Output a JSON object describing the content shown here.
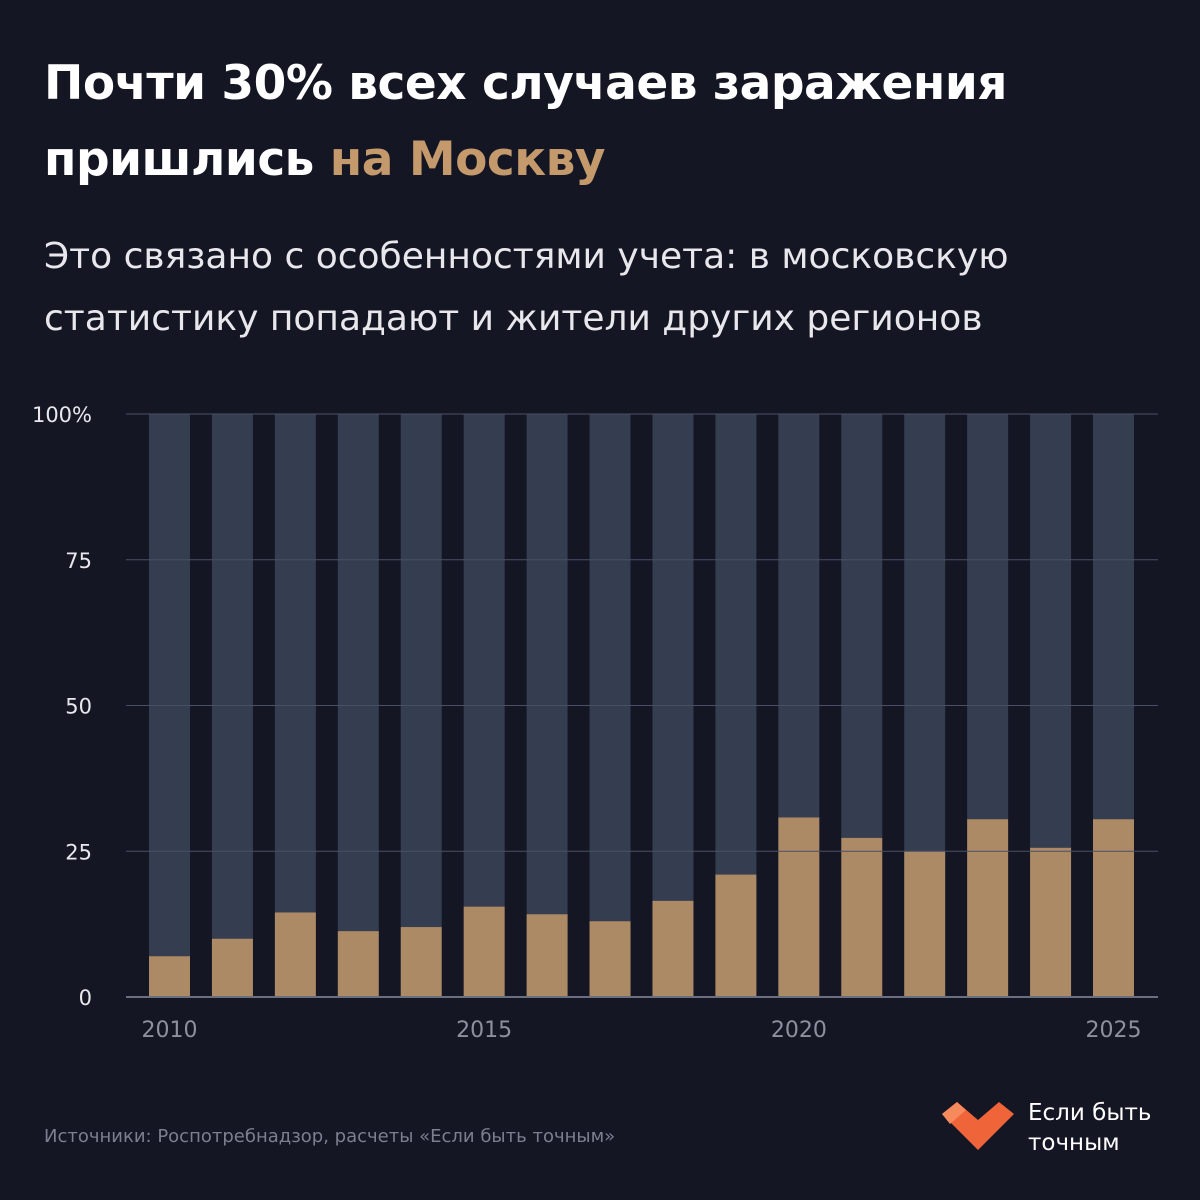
{
  "header": {
    "title_main": "Почти 30% всех случаев заражения пришлись ",
    "title_accent": "на Москву",
    "subtitle": "Это связано с особенностями учета: в московскую статистику попадают и жители других регионов"
  },
  "colors": {
    "background": "#141624",
    "accent": "#c49a6c",
    "bar_total": "#353d51",
    "bar_moscow": "#ad8a66",
    "grid": "#4a5064",
    "tick_label": "#e8e8ec",
    "x_tick_label": "#8d919e"
  },
  "chart_data": {
    "type": "bar",
    "stacked": true,
    "categories": [
      "2010",
      "2011",
      "2012",
      "2013",
      "2014",
      "2015",
      "2016",
      "2017",
      "2018",
      "2019",
      "2020",
      "2021",
      "2022",
      "2023",
      "2024",
      "2025"
    ],
    "x_tick_labels": [
      "2010",
      "2015",
      "2020",
      "2025"
    ],
    "series": [
      {
        "values": [
          7,
          10,
          14.5,
          11.3,
          12,
          15.5,
          14.2,
          13,
          16.5,
          21,
          30.8,
          27.3,
          25,
          30.5,
          25.6,
          30.5
        ]
      },
      {
        "values": [
          93,
          90,
          85.5,
          88.7,
          88,
          84.5,
          85.8,
          87,
          83.5,
          79,
          69.2,
          72.7,
          75,
          69.5,
          74.4,
          69.5
        ]
      }
    ],
    "ylim": [
      0,
      100
    ],
    "y_ticks": [
      0,
      25,
      50,
      75,
      100
    ],
    "y_tick_labels": [
      "0",
      "25",
      "50",
      "75",
      "100%"
    ],
    "grid": true,
    "xlabel": "",
    "ylabel": ""
  },
  "footer": {
    "source": "Источники: Роспотребнадзор, расчеты «Если быть точным»",
    "logo_line1": "Если быть",
    "logo_line2": "точным"
  }
}
